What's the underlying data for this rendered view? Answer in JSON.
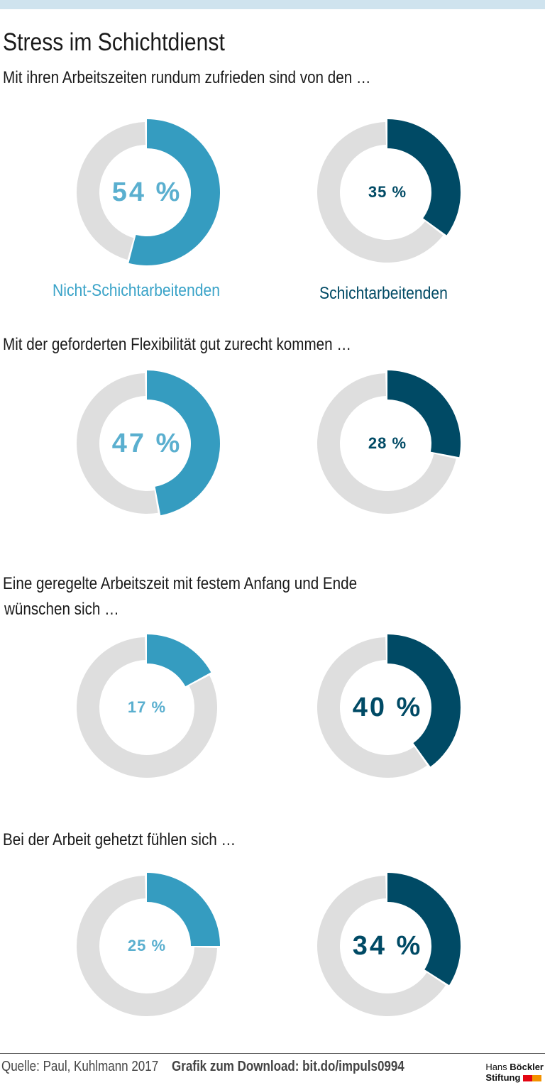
{
  "title": "Stress im Schichtdienst",
  "colors": {
    "light": "#359cc0",
    "light_text": "#5aafcf",
    "dark": "#004a65",
    "grey": "#dedede"
  },
  "legend": {
    "left": "Nicht-Schichtarbeitenden",
    "right": "Schichtarbeitenden"
  },
  "footer": {
    "source": "Quelle: Paul, Kuhlmann 2017",
    "download": "Grafik zum Download: bit.do/impuls0994",
    "logo_line1_a": "Hans",
    "logo_line1_b": "Böckler",
    "logo_line2": "Stiftung"
  },
  "chart_data": {
    "type": "pie",
    "series_names": [
      "Nicht-Schichtarbeitenden",
      "Schichtarbeitenden"
    ],
    "questions": [
      {
        "text": "Mit ihren Arbeitszeiten rundum zufrieden sind von den …",
        "values": [
          54,
          35
        ],
        "labels": [
          "54 %",
          "35 %"
        ]
      },
      {
        "text": "Mit der geforderten Flexibilität gut zurecht kommen …",
        "values": [
          47,
          28
        ],
        "labels": [
          "47 %",
          "28 %"
        ]
      },
      {
        "text": "Eine geregelte Arbeitszeit mit festem Anfang und Ende",
        "text2": "wünschen sich …",
        "values": [
          17,
          40
        ],
        "labels": [
          "17 %",
          "40 %"
        ]
      },
      {
        "text": "Bei der Arbeit gehetzt fühlen sich …",
        "values": [
          25,
          34
        ],
        "labels": [
          "25 %",
          "34 %"
        ]
      }
    ]
  }
}
